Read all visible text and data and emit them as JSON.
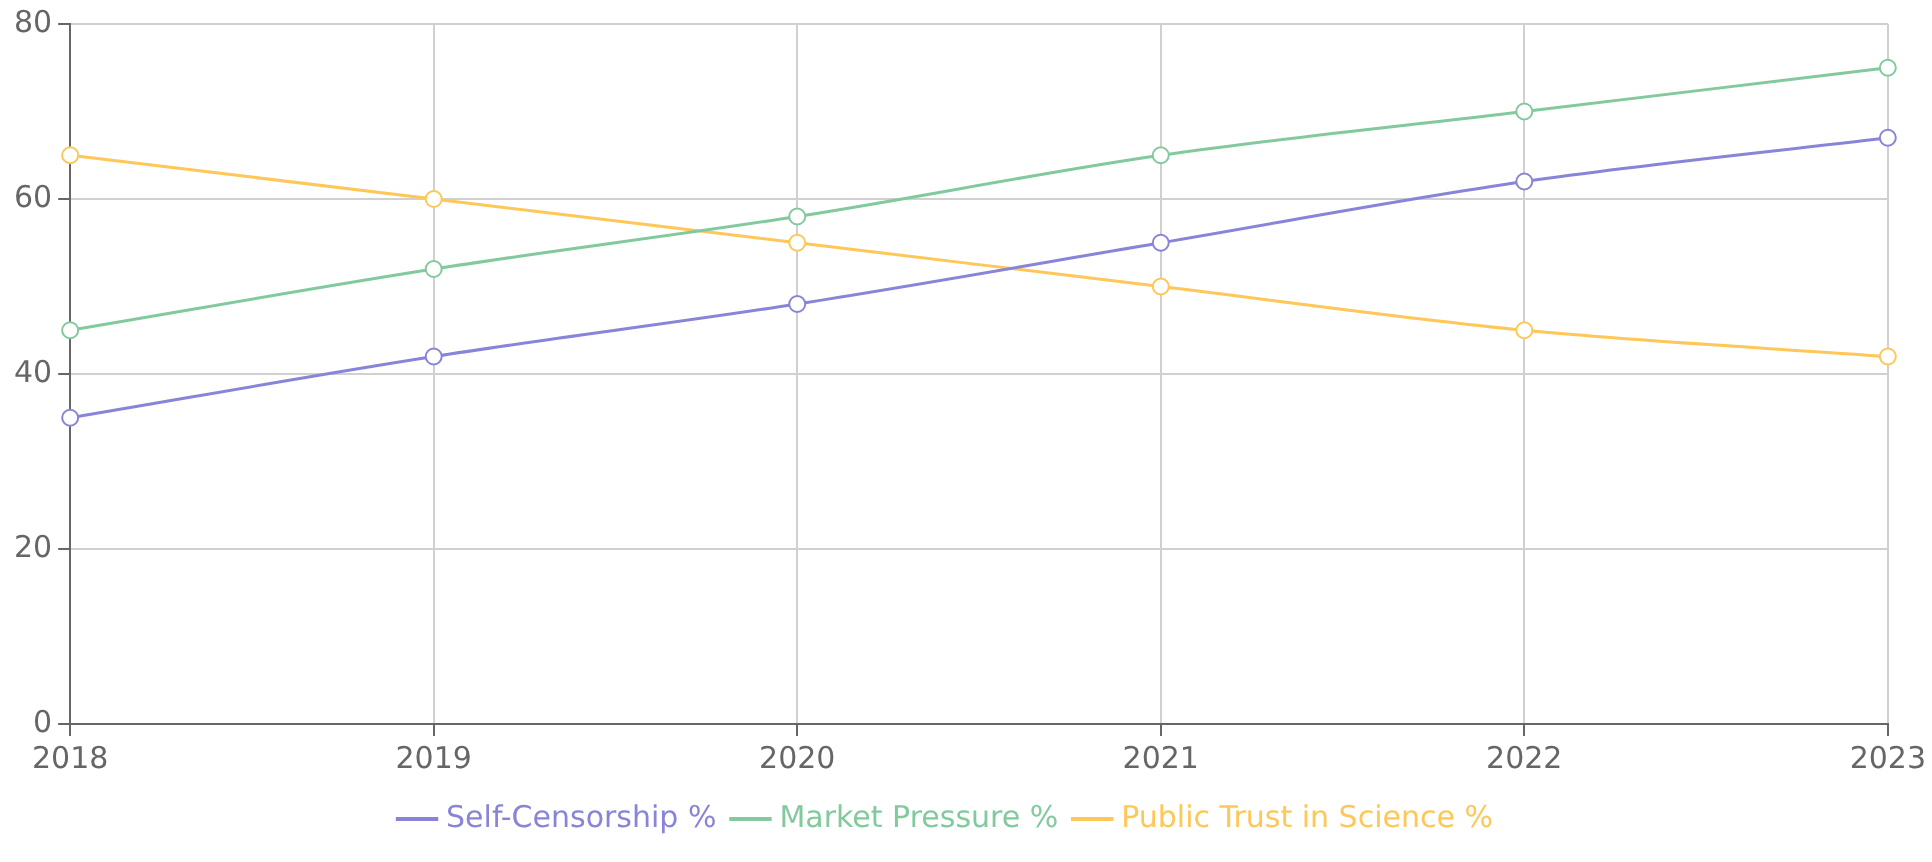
{
  "chart_data": {
    "type": "line",
    "categories": [
      "2018",
      "2019",
      "2020",
      "2021",
      "2022",
      "2023"
    ],
    "series": [
      {
        "name": "Self-Censorship %",
        "color": "#8884d8",
        "values": [
          35,
          42,
          48,
          55,
          62,
          67
        ]
      },
      {
        "name": "Market Pressure %",
        "color": "#82ca9d",
        "values": [
          45,
          52,
          58,
          65,
          70,
          75
        ]
      },
      {
        "name": "Public Trust in Science %",
        "color": "#ffc658",
        "values": [
          65,
          60,
          55,
          50,
          45,
          42
        ]
      }
    ],
    "ylim": [
      0,
      80
    ],
    "yticks": [
      0,
      20,
      40,
      60,
      80
    ],
    "grid": true,
    "legend": "bottom",
    "marker": "circle",
    "line_style": "solid"
  }
}
